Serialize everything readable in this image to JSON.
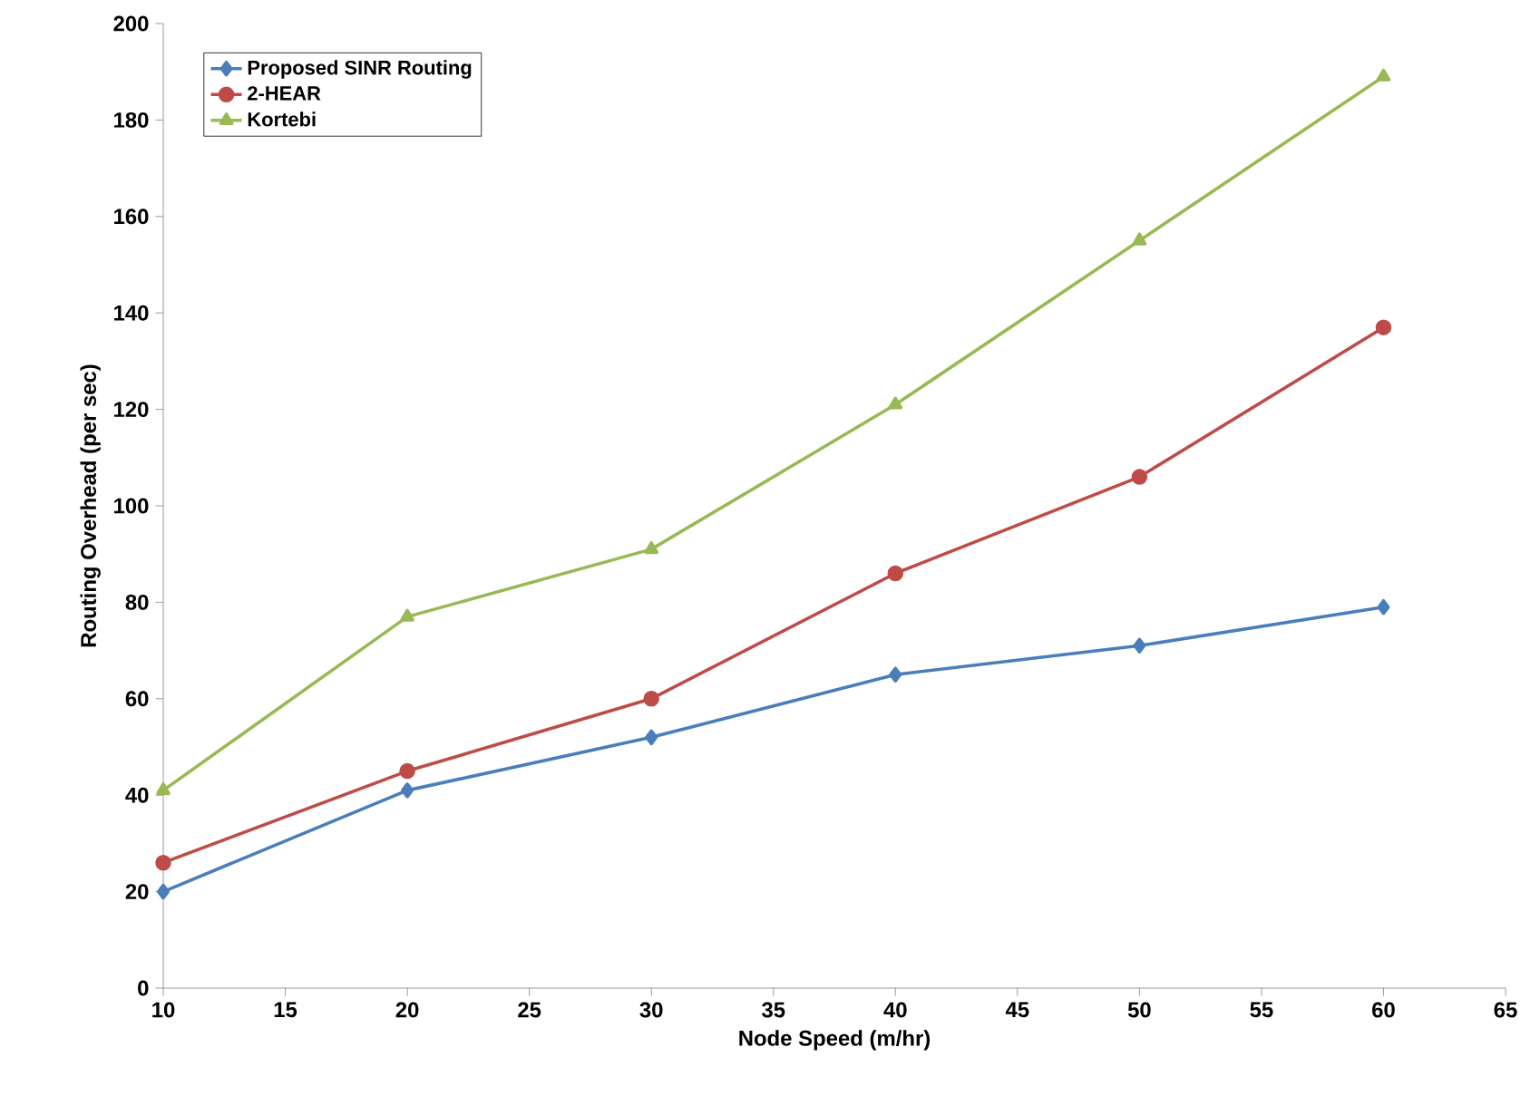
{
  "chart_data": {
    "type": "line",
    "xlabel": "Node Speed (m/hr)",
    "ylabel": "Routing Overhead (per sec)",
    "x": [
      10,
      20,
      30,
      40,
      50,
      60
    ],
    "series": [
      {
        "name": "Proposed SINR Routing",
        "color": "#4a7ebb",
        "marker": "diamond",
        "values": [
          20,
          41,
          52,
          65,
          71,
          79
        ]
      },
      {
        "name": "2-HEAR",
        "color": "#be4b48",
        "marker": "circle",
        "values": [
          26,
          45,
          60,
          86,
          106,
          137
        ]
      },
      {
        "name": "Kortebi",
        "color": "#98b954",
        "marker": "triangle",
        "values": [
          41,
          77,
          91,
          121,
          155,
          189
        ]
      }
    ],
    "xlim": [
      10,
      65
    ],
    "xticks": [
      10,
      15,
      20,
      25,
      30,
      35,
      40,
      45,
      50,
      55,
      60,
      65
    ],
    "ylim": [
      0,
      200
    ],
    "yticks": [
      0,
      20,
      40,
      60,
      80,
      100,
      120,
      140,
      160,
      180,
      200
    ],
    "grid": false,
    "legend": "top left",
    "line_style": "solid"
  }
}
